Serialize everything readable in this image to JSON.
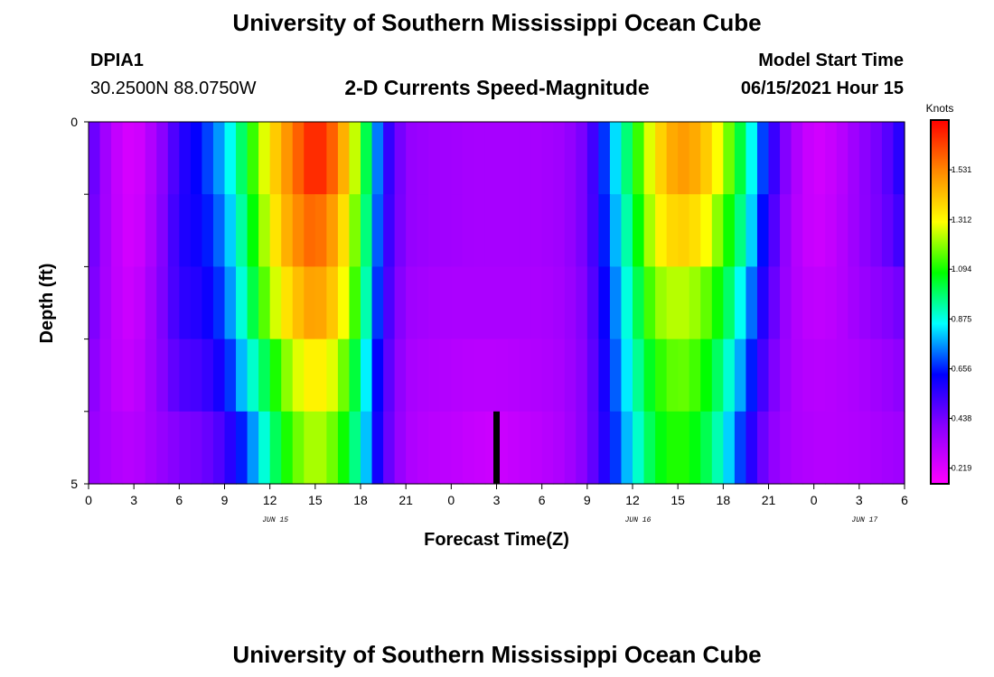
{
  "header": {
    "title": "University of Southern Mississippi Ocean Cube",
    "station_id": "DPIA1",
    "location": "30.2500N  88.0750W",
    "subtitle": "2-D Currents Speed-Magnitude",
    "model_start_label": "Model Start Time",
    "model_start_value": "06/15/2021 Hour 15"
  },
  "footer": {
    "title": "University of Southern Mississippi Ocean Cube"
  },
  "chart_data": {
    "type": "heatmap",
    "xlabel": "Forecast Time(Z)",
    "ylabel": "Depth (ft)",
    "x_tick_labels": [
      "0",
      "3",
      "6",
      "9",
      "12",
      "15",
      "18",
      "21",
      "0",
      "3",
      "6",
      "9",
      "12",
      "15",
      "18",
      "21",
      "0",
      "3",
      "6"
    ],
    "x_hours": [
      0,
      3,
      6,
      9,
      12,
      15,
      18,
      21,
      24,
      27,
      30,
      33,
      36,
      39,
      42,
      45,
      48,
      51,
      54
    ],
    "date_labels": [
      {
        "text": "JUN 15",
        "hour": 12
      },
      {
        "text": "JUN 16",
        "hour": 36
      },
      {
        "text": "JUN 17",
        "hour": 51
      }
    ],
    "y_tick_labels": [
      "0",
      "5"
    ],
    "ylim": [
      0,
      5
    ],
    "depth_levels": [
      0.5,
      1.5,
      2.5,
      3.5,
      4.5
    ],
    "colorbar": {
      "unit": "Knots",
      "tick_labels": [
        "1.531",
        "1.312",
        "1.094",
        "0.875",
        "0.656",
        "0.438",
        "0.219"
      ],
      "range": [
        0.15,
        1.75
      ]
    },
    "marker": {
      "hour": 27,
      "depth_from": 4.0,
      "depth_to": 5.0
    },
    "columns": {
      "hours": [
        0,
        1.5,
        3,
        4.5,
        6,
        7.5,
        9,
        10.5,
        12,
        13.5,
        15,
        16.5,
        18,
        19.5,
        21,
        22.5,
        24,
        25.5,
        27,
        28.5,
        30,
        31.5,
        33,
        34.5,
        36,
        37.5,
        39,
        40.5,
        42,
        43.5,
        45,
        46.5,
        48,
        49.5,
        51,
        52.5,
        54
      ],
      "speed_by_depth": [
        [
          0.5,
          0.3,
          0.22,
          0.35,
          0.55,
          0.65,
          0.8,
          1.05,
          1.35,
          1.55,
          1.72,
          1.55,
          1.15,
          0.6,
          0.38,
          0.36,
          0.35,
          0.34,
          0.34,
          0.34,
          0.34,
          0.36,
          0.45,
          0.75,
          1.05,
          1.35,
          1.5,
          1.45,
          1.25,
          0.95,
          0.6,
          0.35,
          0.24,
          0.28,
          0.38,
          0.45,
          0.6
        ],
        [
          0.48,
          0.3,
          0.23,
          0.36,
          0.57,
          0.62,
          0.75,
          1.0,
          1.3,
          1.5,
          1.6,
          1.45,
          1.1,
          0.58,
          0.38,
          0.36,
          0.35,
          0.34,
          0.34,
          0.34,
          0.34,
          0.36,
          0.45,
          0.72,
          1.0,
          1.3,
          1.4,
          1.35,
          1.15,
          0.9,
          0.55,
          0.33,
          0.25,
          0.29,
          0.38,
          0.44,
          0.55
        ],
        [
          0.46,
          0.3,
          0.25,
          0.38,
          0.55,
          0.58,
          0.7,
          0.95,
          1.22,
          1.4,
          1.5,
          1.38,
          1.05,
          0.55,
          0.36,
          0.34,
          0.33,
          0.33,
          0.33,
          0.33,
          0.33,
          0.35,
          0.43,
          0.68,
          0.95,
          1.2,
          1.25,
          1.2,
          1.05,
          0.8,
          0.5,
          0.33,
          0.28,
          0.3,
          0.36,
          0.4,
          0.45
        ],
        [
          0.42,
          0.3,
          0.27,
          0.38,
          0.5,
          0.52,
          0.62,
          0.85,
          1.05,
          1.25,
          1.35,
          1.25,
          0.95,
          0.52,
          0.34,
          0.32,
          0.31,
          0.3,
          0.3,
          0.31,
          0.32,
          0.34,
          0.42,
          0.65,
          0.9,
          1.1,
          1.18,
          1.12,
          0.95,
          0.72,
          0.45,
          0.33,
          0.3,
          0.31,
          0.33,
          0.36,
          0.4
        ],
        [
          0.38,
          0.32,
          0.3,
          0.36,
          0.42,
          0.44,
          0.52,
          0.7,
          0.95,
          1.15,
          1.25,
          1.15,
          0.9,
          0.5,
          0.33,
          0.3,
          0.29,
          0.27,
          0.26,
          0.28,
          0.3,
          0.33,
          0.42,
          0.62,
          0.85,
          1.05,
          1.12,
          1.05,
          0.88,
          0.62,
          0.4,
          0.33,
          0.31,
          0.31,
          0.32,
          0.34,
          0.36
        ]
      ]
    }
  }
}
